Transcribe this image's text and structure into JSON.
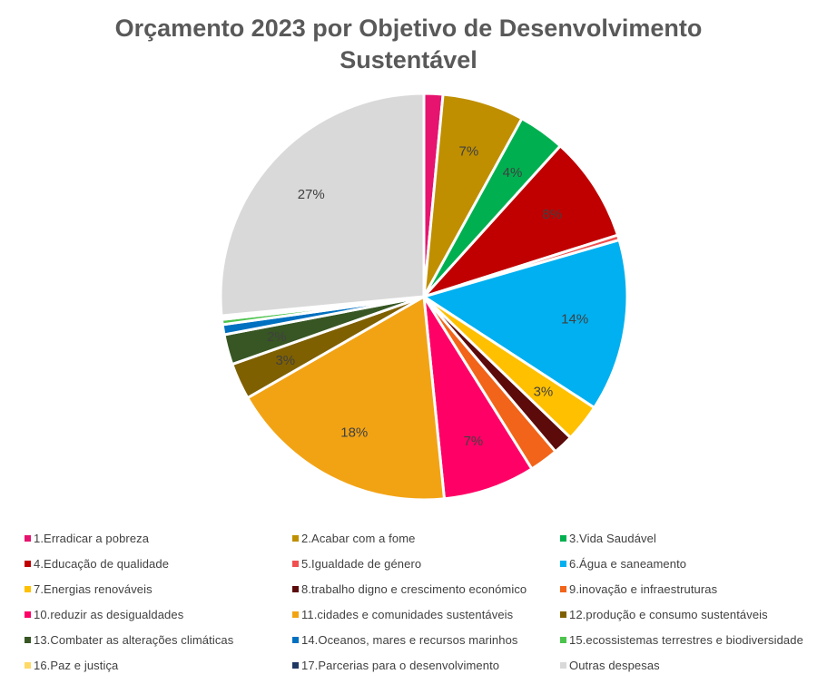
{
  "chart_data": {
    "type": "pie",
    "title": "Orçamento 2023 por Objetivo de Desenvolvimento Sustentável",
    "legend_position": "bottom",
    "slices": [
      {
        "label": "1.Erradicar a pobreza",
        "value": 1.5,
        "data_label": "",
        "color": "#E6136F"
      },
      {
        "label": "2.Acabar com a fome",
        "value": 6.5,
        "data_label": "7%",
        "color": "#BF8F00"
      },
      {
        "label": "3.Vida Saudável",
        "value": 3.7,
        "data_label": "4%",
        "color": "#00B050"
      },
      {
        "label": "4.Educação de qualidade",
        "value": 8.4,
        "data_label": "8%",
        "color": "#C00000"
      },
      {
        "label": "5.Igualdade de género",
        "value": 0.4,
        "data_label": "",
        "color": "#F0504F"
      },
      {
        "label": "6.Água e saneamento",
        "value": 13.7,
        "data_label": "14%",
        "color": "#00B0F0"
      },
      {
        "label": "7.Energias renováveis",
        "value": 3.0,
        "data_label": "3%",
        "color": "#FFC000"
      },
      {
        "label": "8.trabalho digno e crescimento económico",
        "value": 1.6,
        "data_label": "",
        "color": "#5C0A0A"
      },
      {
        "label": "9.inovação e infraestruturas",
        "value": 2.3,
        "data_label": "",
        "color": "#F26419"
      },
      {
        "label": "10.reduzir as desigualdades",
        "value": 7.3,
        "data_label": "7%",
        "color": "#FF0066"
      },
      {
        "label": "11.cidades e comunidades sustentáveis",
        "value": 18.3,
        "data_label": "18%",
        "color": "#F2A314"
      },
      {
        "label": "12.produção e consumo sustentáveis",
        "value": 2.9,
        "data_label": "3%",
        "color": "#7F6000"
      },
      {
        "label": "13.Combater as alterações climáticas",
        "value": 2.4,
        "data_label": "2%",
        "color": "#375623"
      },
      {
        "label": "14.Oceanos, mares e recursos marinhos",
        "value": 0.8,
        "data_label": "",
        "color": "#0070C0"
      },
      {
        "label": "15.ecossistemas terrestres e biodiversidade",
        "value": 0.4,
        "data_label": "",
        "color": "#4CC34C"
      },
      {
        "label": "16.Paz e justiça",
        "value": 0.2,
        "data_label": "",
        "color": "#FFD966"
      },
      {
        "label": "17.Parcerias para o desenvolvimento",
        "value": 0.1,
        "data_label": "",
        "color": "#203864"
      },
      {
        "label": "Outras despesas",
        "value": 26.5,
        "data_label": "27%",
        "color": "#D9D9D9"
      }
    ]
  }
}
